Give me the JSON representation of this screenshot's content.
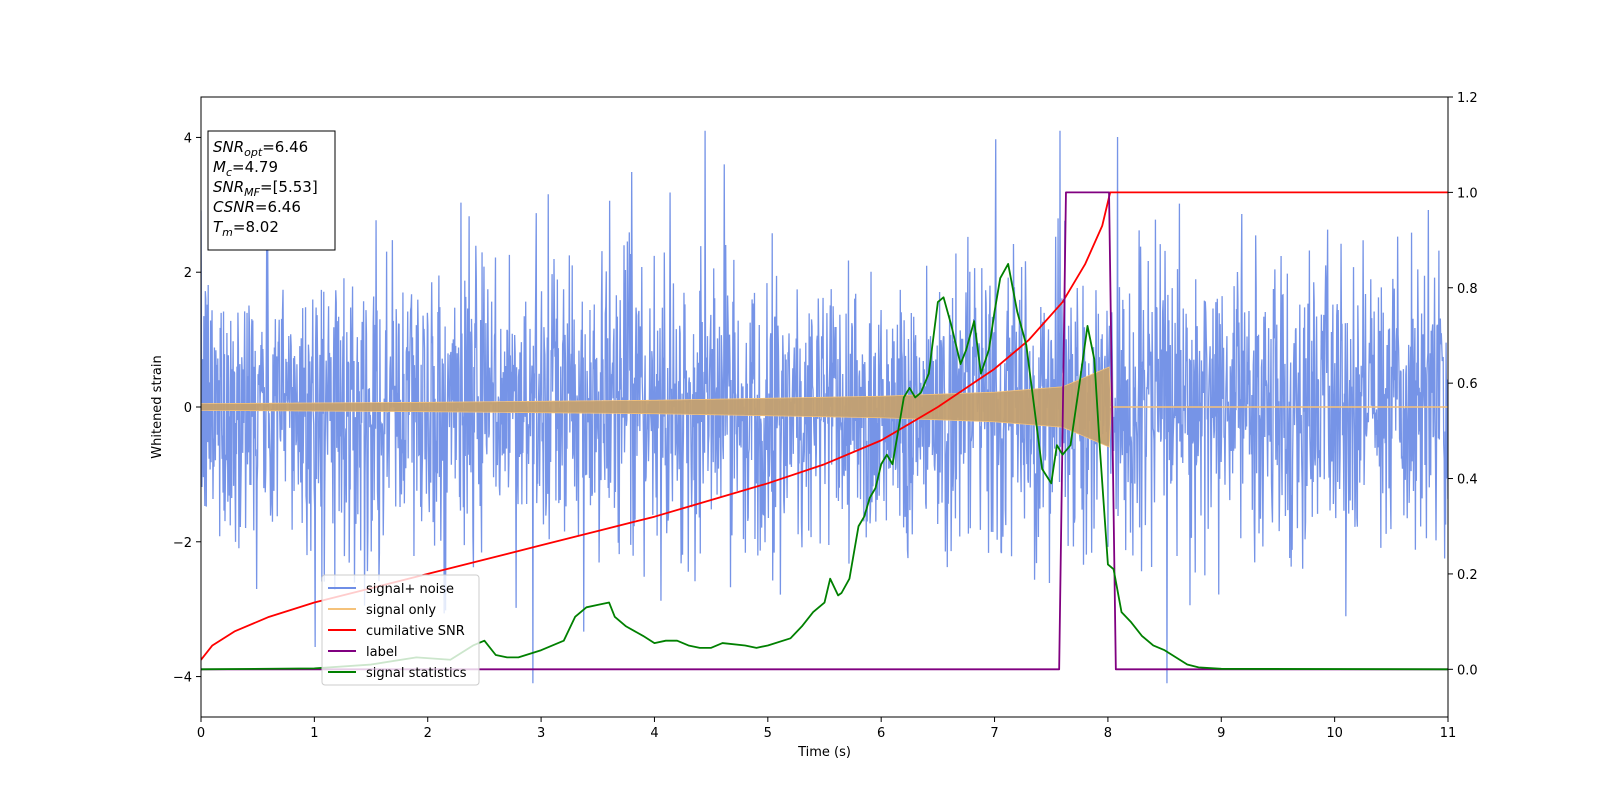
{
  "chart_data": {
    "type": "line",
    "xlabel": "Time (s)",
    "ylabel": "Whitened strain",
    "xlim": [
      0,
      11
    ],
    "ylim_left": [
      -4.6,
      4.6
    ],
    "ylim_right": [
      -0.1,
      1.2
    ],
    "x_ticks": [
      "0",
      "1",
      "2",
      "3",
      "4",
      "5",
      "6",
      "7",
      "8",
      "9",
      "10",
      "11"
    ],
    "y_ticks_left": [
      "-4",
      "-2",
      "0",
      "2",
      "4"
    ],
    "y_ticks_right": [
      "0.0",
      "0.2",
      "0.4",
      "0.6",
      "0.8",
      "1.0",
      "1.2"
    ],
    "grid": false,
    "legend_position": "lower-left",
    "annotation": {
      "lines": [
        {
          "main": "SNR",
          "sub": "opt",
          "value": "=6.46"
        },
        {
          "main": "M",
          "sub": "c",
          "value": "=4.79"
        },
        {
          "main": "SNR",
          "sub": "MF",
          "value": "=[5.53]"
        },
        {
          "main": "CSNR",
          "sub": "",
          "value": "=6.46"
        },
        {
          "main": "T",
          "sub": "m",
          "value": "=8.02"
        }
      ]
    },
    "series": [
      {
        "name": "signal+ noise",
        "color": "#6f8ee6",
        "axis": "left",
        "description_level": "noise amplitude approx ±2.5 with spikes to ±4"
      },
      {
        "name": "signal only",
        "color": "#f5c27a",
        "axis": "left",
        "envelope": {
          "x": [
            0,
            2,
            4,
            6,
            7,
            7.6,
            8.02,
            8.03,
            11
          ],
          "amp": [
            0.05,
            0.07,
            0.1,
            0.16,
            0.22,
            0.3,
            0.6,
            0.0,
            0.0
          ]
        }
      },
      {
        "name": "cumilative SNR",
        "color": "#ff0000",
        "axis": "right",
        "x": [
          0,
          0.1,
          0.3,
          0.6,
          1,
          1.5,
          2,
          2.5,
          3,
          3.5,
          4,
          4.5,
          5,
          5.5,
          6,
          6.5,
          7,
          7.3,
          7.6,
          7.8,
          7.95,
          8.02,
          11
        ],
        "y": [
          0.02,
          0.05,
          0.08,
          0.11,
          0.14,
          0.17,
          0.2,
          0.23,
          0.26,
          0.29,
          0.32,
          0.355,
          0.39,
          0.43,
          0.48,
          0.55,
          0.63,
          0.69,
          0.77,
          0.85,
          0.93,
          1.0,
          1.0
        ]
      },
      {
        "name": "label",
        "color": "#800080",
        "axis": "right",
        "x": [
          0,
          7.57,
          7.63,
          8.01,
          8.07,
          11
        ],
        "y": [
          0,
          0,
          1,
          1,
          0,
          0
        ]
      },
      {
        "name": "signal statistics",
        "color": "#008000",
        "axis": "right",
        "x": [
          0,
          1,
          1.5,
          1.9,
          2.2,
          2.4,
          2.5,
          2.6,
          2.7,
          2.8,
          3.0,
          3.2,
          3.3,
          3.4,
          3.5,
          3.6,
          3.65,
          3.75,
          3.9,
          4.0,
          4.1,
          4.2,
          4.3,
          4.4,
          4.5,
          4.6,
          4.8,
          4.9,
          5.0,
          5.2,
          5.3,
          5.4,
          5.5,
          5.55,
          5.62,
          5.65,
          5.72,
          5.8,
          5.85,
          5.9,
          5.95,
          6.0,
          6.05,
          6.1,
          6.2,
          6.25,
          6.3,
          6.35,
          6.42,
          6.5,
          6.55,
          6.62,
          6.7,
          6.75,
          6.82,
          6.88,
          6.95,
          7.0,
          7.05,
          7.12,
          7.2,
          7.28,
          7.35,
          7.42,
          7.5,
          7.55,
          7.6,
          7.67,
          7.75,
          7.82,
          7.88,
          7.93,
          8.0,
          8.05,
          8.12,
          8.2,
          8.3,
          8.4,
          8.5,
          8.6,
          8.7,
          8.8,
          9.0,
          11
        ],
        "y": [
          0,
          0.002,
          0.01,
          0.025,
          0.02,
          0.05,
          0.06,
          0.03,
          0.025,
          0.025,
          0.04,
          0.06,
          0.11,
          0.13,
          0.135,
          0.14,
          0.11,
          0.09,
          0.07,
          0.055,
          0.06,
          0.06,
          0.05,
          0.045,
          0.045,
          0.055,
          0.05,
          0.045,
          0.05,
          0.065,
          0.09,
          0.12,
          0.14,
          0.19,
          0.155,
          0.16,
          0.19,
          0.3,
          0.32,
          0.36,
          0.38,
          0.43,
          0.45,
          0.43,
          0.57,
          0.59,
          0.57,
          0.58,
          0.62,
          0.77,
          0.78,
          0.72,
          0.64,
          0.67,
          0.73,
          0.62,
          0.67,
          0.75,
          0.82,
          0.85,
          0.75,
          0.68,
          0.55,
          0.42,
          0.39,
          0.47,
          0.45,
          0.47,
          0.6,
          0.72,
          0.65,
          0.46,
          0.22,
          0.21,
          0.12,
          0.1,
          0.07,
          0.05,
          0.04,
          0.025,
          0.01,
          0.004,
          0.001,
          0
        ]
      }
    ]
  }
}
